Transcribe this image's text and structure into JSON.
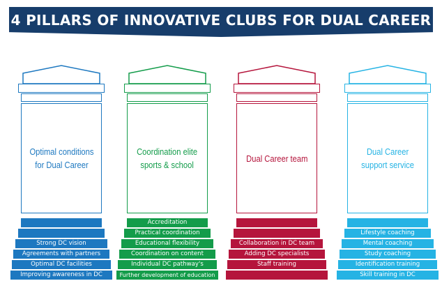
{
  "title": "4 PILLARS OF INNOVATIVE CLUBS FOR DUAL CAREER",
  "colors": {
    "banner": "#173d6b",
    "pillar_1": "#1d78c0",
    "pillar_2": "#139c4a",
    "pillar_3": "#b5153c",
    "pillar_4": "#25b3e4"
  },
  "pillars": [
    {
      "label": "Optimal conditions\nfor Dual Career",
      "color": "#1d78c0",
      "steps": [
        "",
        "",
        "Strong DC vision",
        "Agreements with partners",
        "Optimal DC facilities",
        "Improving awareness in DC"
      ]
    },
    {
      "label": "Coordination elite\nsports & school",
      "color": "#139c4a",
      "steps": [
        "Accreditation",
        "Practical coordination",
        "Educational flexibility",
        "Coordination on content",
        "Individual DC pathway's",
        "Further development of education"
      ]
    },
    {
      "label": "Dual Career team",
      "color": "#b5153c",
      "steps": [
        "",
        "",
        "Collaboration in DC team",
        "Adding DC specialists",
        "Staff training",
        ""
      ]
    },
    {
      "label": "Dual Career\nsupport service",
      "color": "#25b3e4",
      "steps": [
        "",
        "Lifestyle coaching",
        "Mental coaching",
        "Study coaching",
        "Identification training",
        "Skill training in DC"
      ]
    }
  ]
}
